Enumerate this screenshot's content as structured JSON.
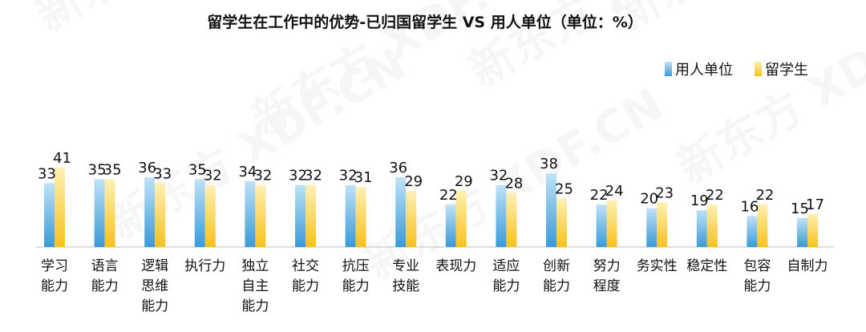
{
  "chart_data": {
    "type": "bar",
    "title": "留学生在工作中的优势-已归国留学生 VS 用人单位（单位：%）",
    "categories": [
      [
        "学习",
        "能力"
      ],
      [
        "语言",
        "能力"
      ],
      [
        "逻辑",
        "思维",
        "能力"
      ],
      [
        "执行力"
      ],
      [
        "独立",
        "自主",
        "能力"
      ],
      [
        "社交",
        "能力"
      ],
      [
        "抗压",
        "能力"
      ],
      [
        "专业",
        "技能"
      ],
      [
        "表现力"
      ],
      [
        "适应",
        "能力"
      ],
      [
        "创新",
        "能力"
      ],
      [
        "努力",
        "程度"
      ],
      [
        "务实性"
      ],
      [
        "稳定性"
      ],
      [
        "包容",
        "能力"
      ],
      [
        "自制力"
      ]
    ],
    "series": [
      {
        "name": "用人单位",
        "values": [
          33,
          35,
          36,
          35,
          34,
          32,
          32,
          36,
          22,
          32,
          38,
          22,
          20,
          19,
          16,
          15
        ]
      },
      {
        "name": "留学生",
        "values": [
          41,
          35,
          33,
          32,
          32,
          32,
          31,
          29,
          29,
          28,
          25,
          24,
          23,
          22,
          22,
          17
        ]
      }
    ],
    "ylim": [
      0,
      41
    ],
    "legend_position": "top-right",
    "grid": false,
    "colors": {
      "employer_light": "#bfe2f7",
      "employer_dark": "#3a9ad9",
      "student_light": "#fff0b3",
      "student_dark": "#f7c21c"
    }
  },
  "watermark": "新东方 XDF.CN"
}
